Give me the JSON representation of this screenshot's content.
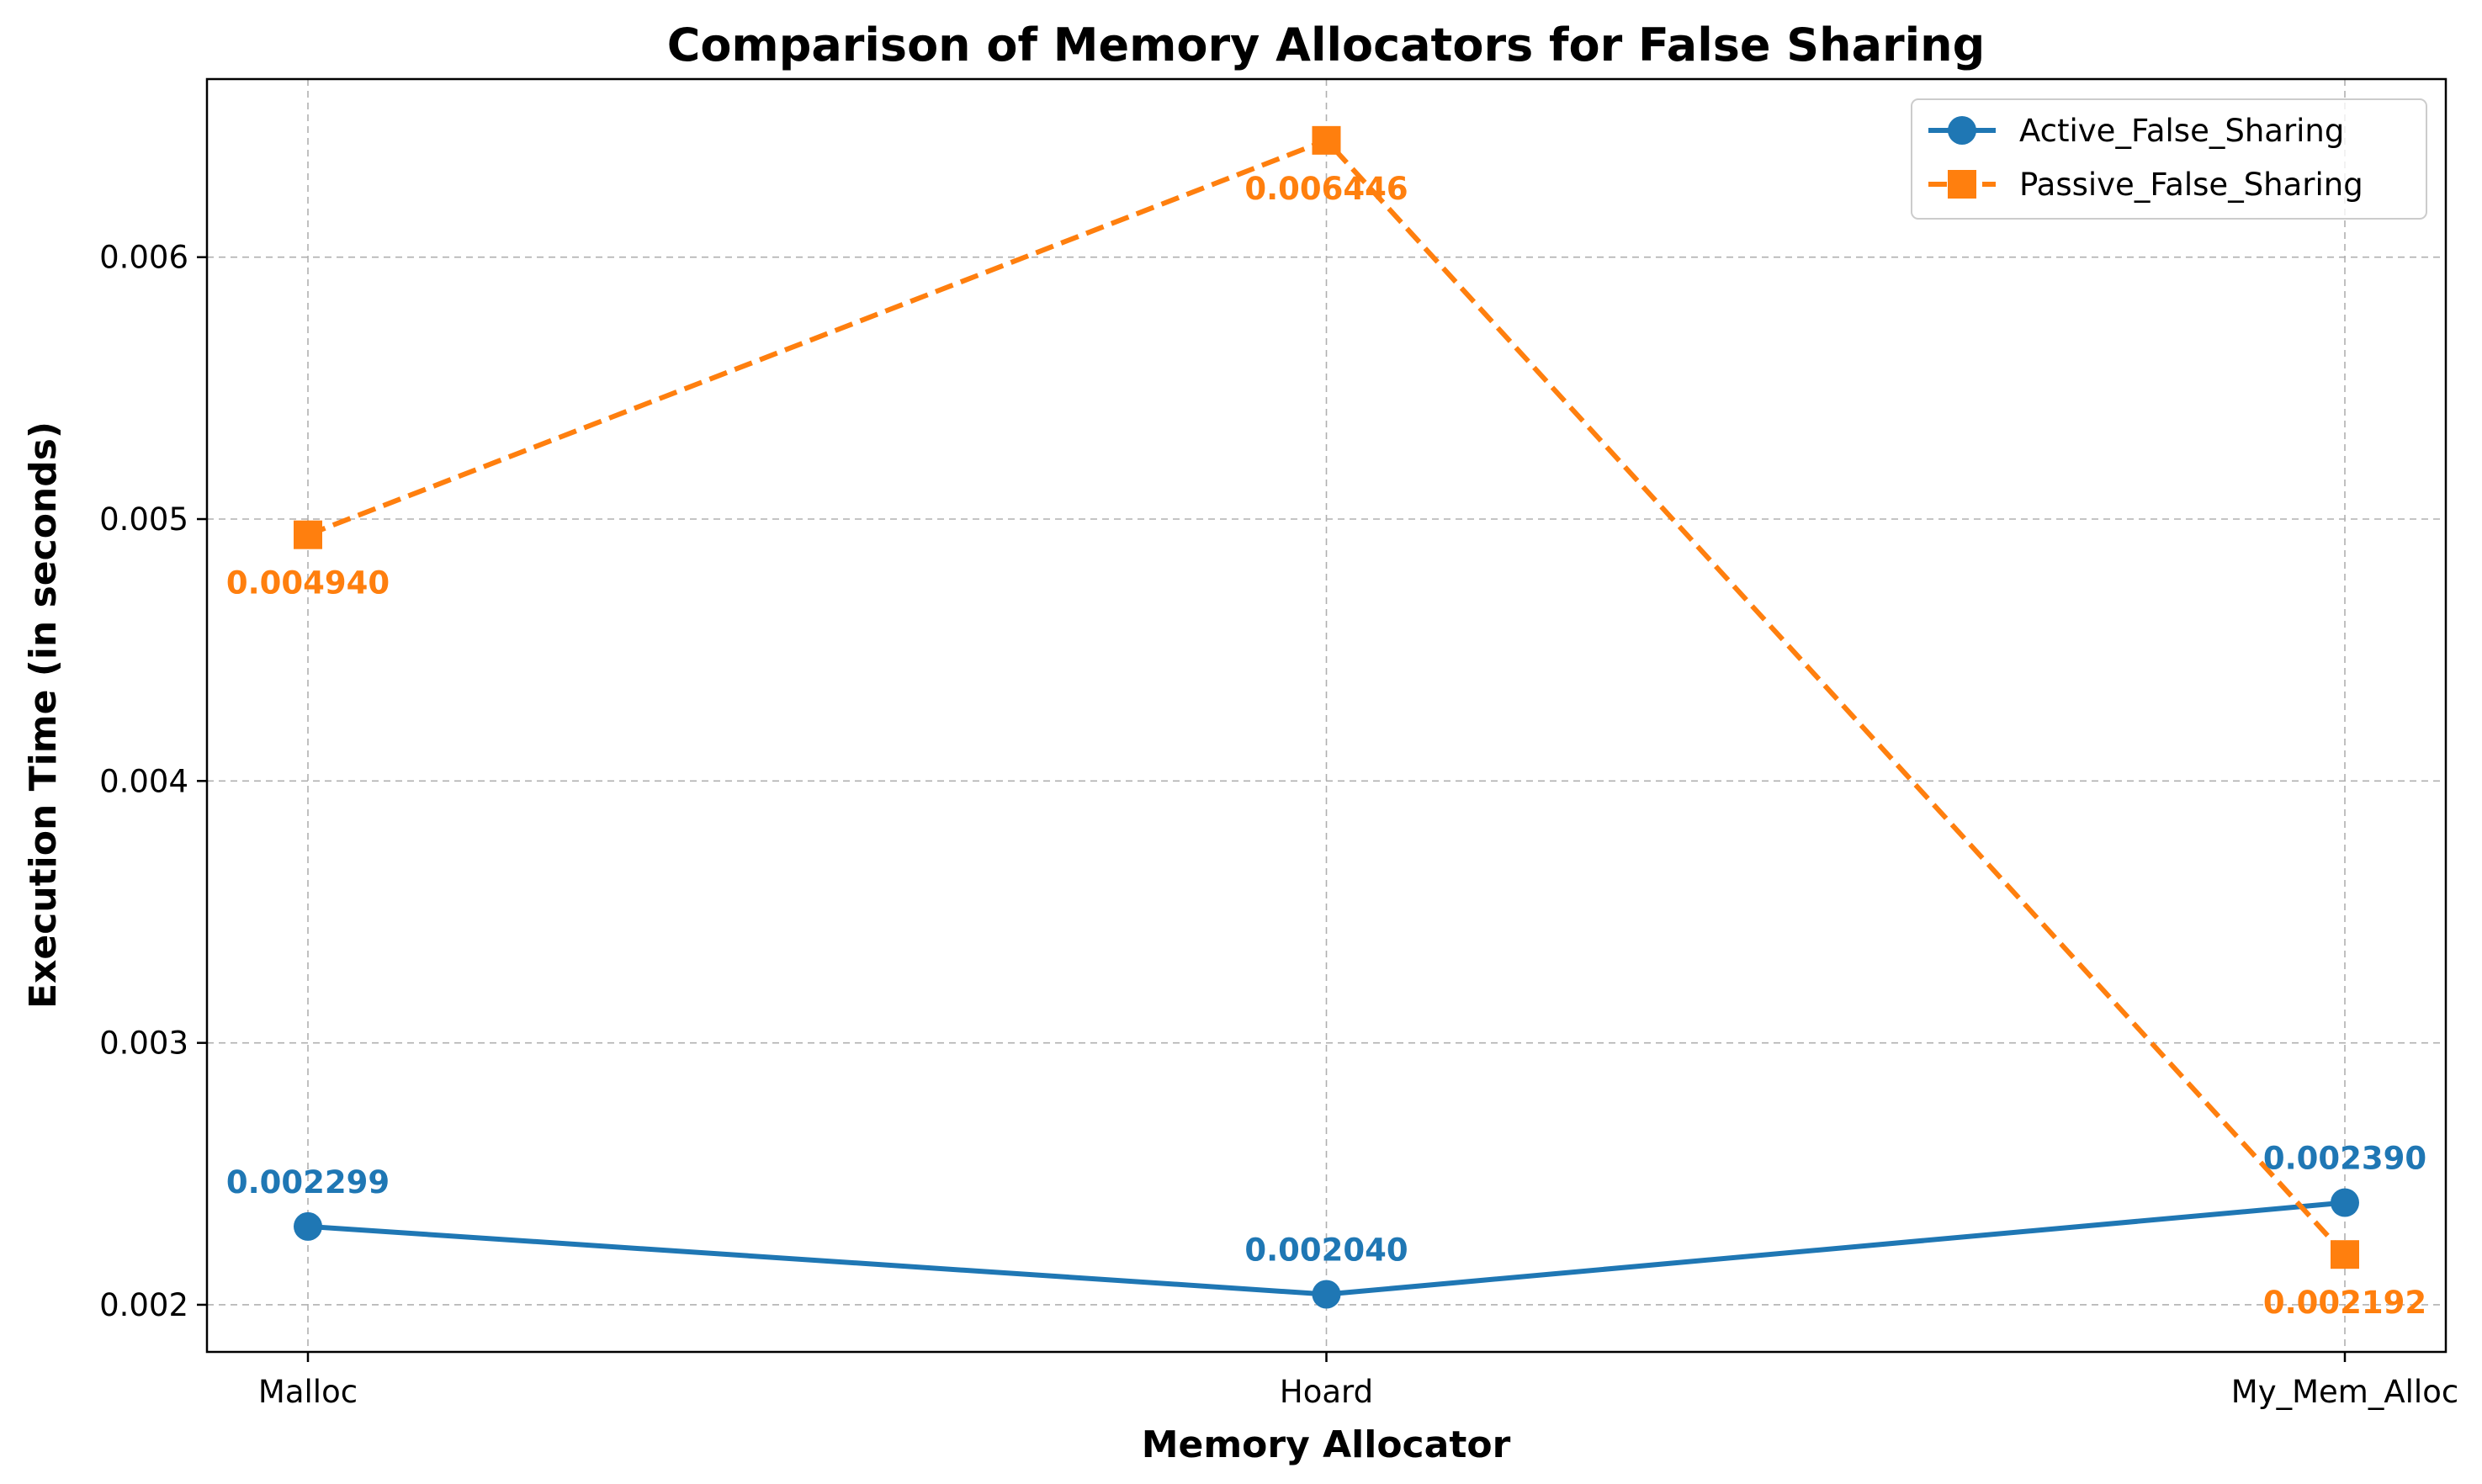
{
  "chart_data": {
    "type": "line",
    "title": "Comparison of Memory Allocators for False Sharing",
    "xlabel": "Memory Allocator",
    "ylabel": "Execution Time (in seconds)",
    "categories": [
      "Malloc",
      "Hoard",
      "My_Mem_Alloc"
    ],
    "ylim": [
      0.00182,
      0.00668
    ],
    "yticks": [
      0.002,
      0.003,
      0.004,
      0.005,
      0.006
    ],
    "ytick_labels": [
      "0.002",
      "0.003",
      "0.004",
      "0.005",
      "0.006"
    ],
    "grid": true,
    "legend_position": "top-right",
    "series": [
      {
        "name": "Active_False_Sharing",
        "values": [
          0.002299,
          0.00204,
          0.00239
        ],
        "labels": [
          "0.002299",
          "0.002040",
          "0.002390"
        ],
        "label_placement": [
          "above",
          "above",
          "above"
        ],
        "color": "#1f77b4",
        "marker": "circle",
        "line_style": "solid"
      },
      {
        "name": "Passive_False_Sharing",
        "values": [
          0.00494,
          0.006446,
          0.002192
        ],
        "labels": [
          "0.004940",
          "0.006446",
          "0.002192"
        ],
        "label_placement": [
          "below",
          "below",
          "below"
        ],
        "color": "#ff7f0e",
        "marker": "square",
        "line_style": "dashed"
      }
    ]
  }
}
